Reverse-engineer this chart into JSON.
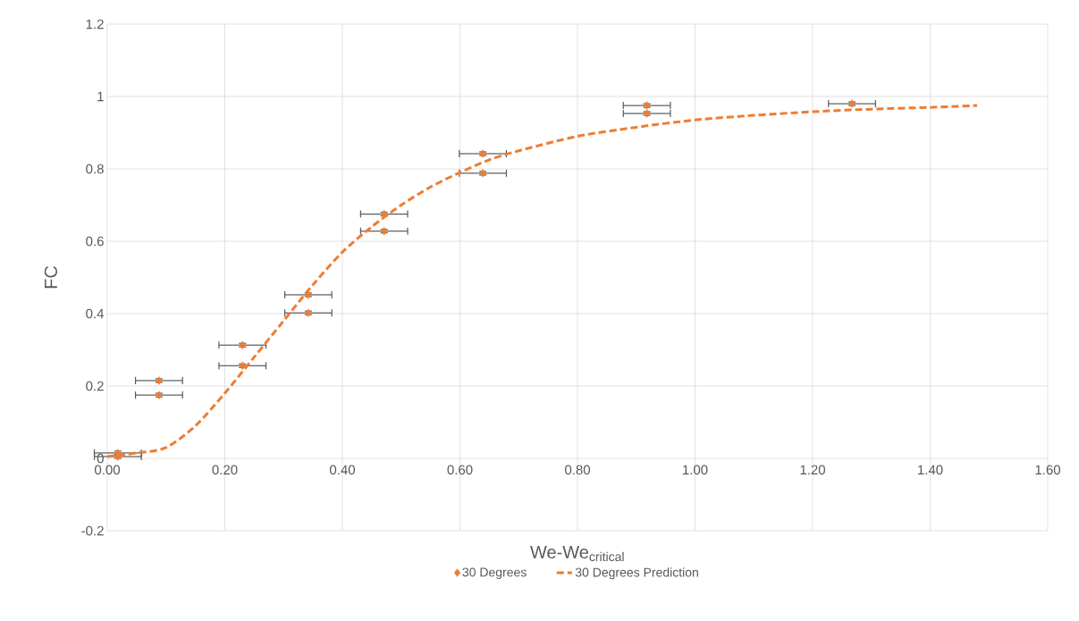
{
  "chart_data": {
    "type": "scatter",
    "xlabel": "We-We$_{critical}$",
    "ylabel": "FC",
    "xlim": [
      0,
      1.6
    ],
    "ylim": [
      -0.2,
      1.2
    ],
    "xticks": [
      {
        "value": 0,
        "label": "0.00"
      },
      {
        "value": 0.2,
        "label": "0.20"
      },
      {
        "value": 0.4,
        "label": "0.40"
      },
      {
        "value": 0.6,
        "label": "0.60"
      },
      {
        "value": 0.8,
        "label": "0.80"
      },
      {
        "value": 1.0,
        "label": "1.00"
      },
      {
        "value": 1.2,
        "label": "1.20"
      },
      {
        "value": 1.4,
        "label": "1.40"
      },
      {
        "value": 1.6,
        "label": "1.60"
      }
    ],
    "yticks": [
      -0.2,
      0,
      0.2,
      0.4,
      0.6,
      0.8,
      1,
      1.2
    ],
    "grid": true,
    "legend": "bottom",
    "series": [
      {
        "name": "30 Degrees",
        "color": "#ed7d31",
        "marker": "diamond",
        "x": [
          0.018,
          0.018,
          0.088,
          0.088,
          0.23,
          0.23,
          0.342,
          0.342,
          0.471,
          0.471,
          0.639,
          0.639,
          0.918,
          0.918,
          1.267
        ],
        "values": [
          0.015,
          0.005,
          0.215,
          0.175,
          0.313,
          0.256,
          0.452,
          0.402,
          0.675,
          0.628,
          0.842,
          0.788,
          0.975,
          0.953,
          0.98
        ],
        "errors": [
          0.005,
          0.005,
          0.005,
          0.005,
          0.005,
          0.005,
          0.005,
          0.005,
          0.005,
          0.005,
          0.005,
          0.005,
          0.005,
          0.005,
          0.005
        ],
        "xerrors": [
          0.04,
          0.04,
          0.04,
          0.04,
          0.04,
          0.04,
          0.04,
          0.04,
          0.04,
          0.04,
          0.04,
          0.04,
          0.04,
          0.04,
          0.04
        ]
      },
      {
        "name": "30 Degrees Prediction",
        "type": "line",
        "color": "#ed7d31",
        "line_style": "dashed",
        "marker": "none",
        "x": [
          0,
          0.05,
          0.1,
          0.15,
          0.2,
          0.25,
          0.3,
          0.35,
          0.4,
          0.45,
          0.5,
          0.55,
          0.6,
          0.65,
          0.7,
          0.8,
          0.9,
          1.0,
          1.1,
          1.2,
          1.3,
          1.4,
          1.48
        ],
        "values": [
          0.005,
          0.015,
          0.03,
          0.09,
          0.18,
          0.28,
          0.38,
          0.48,
          0.57,
          0.64,
          0.7,
          0.75,
          0.79,
          0.825,
          0.85,
          0.89,
          0.915,
          0.935,
          0.948,
          0.958,
          0.965,
          0.97,
          0.975
        ]
      }
    ]
  }
}
